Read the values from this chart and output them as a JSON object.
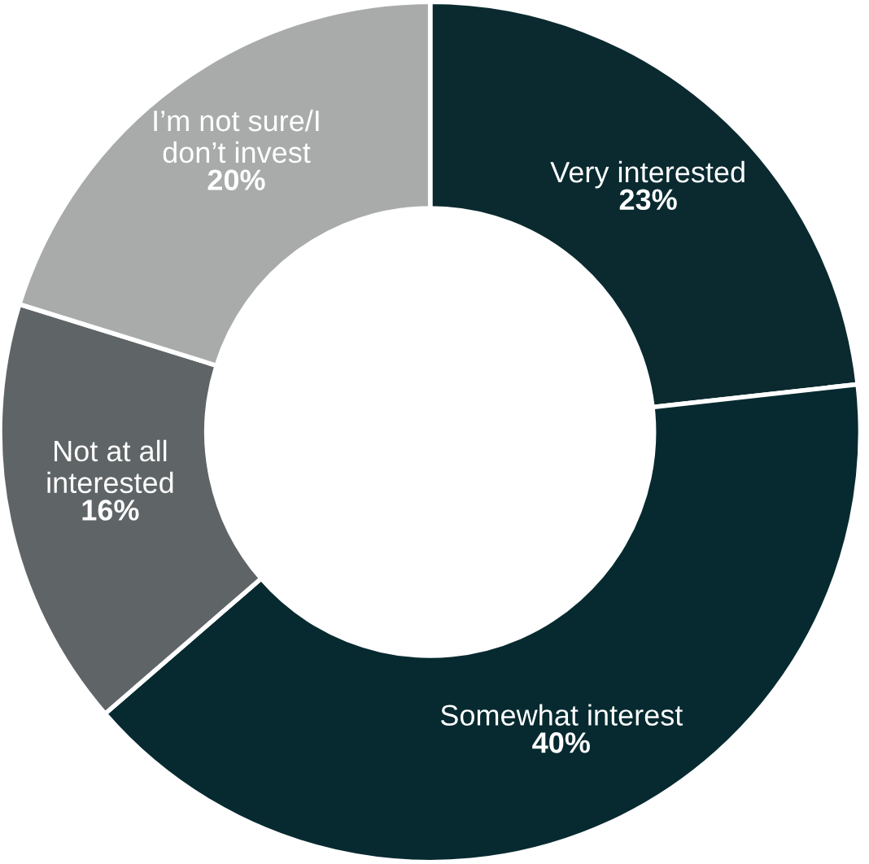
{
  "chart_data": {
    "type": "donut",
    "categories": [
      "Very interested",
      "Somewhat interest",
      "Not at all\ninterested",
      "I’m not sure/I\ndon’t invest"
    ],
    "values": [
      23,
      40,
      16,
      20
    ],
    "value_labels": [
      "23%",
      "40%",
      "16%",
      "20%"
    ],
    "colors": [
      "#0a2a30",
      "#062a30",
      "#5f6566",
      "#a9abab"
    ],
    "legend": false
  }
}
